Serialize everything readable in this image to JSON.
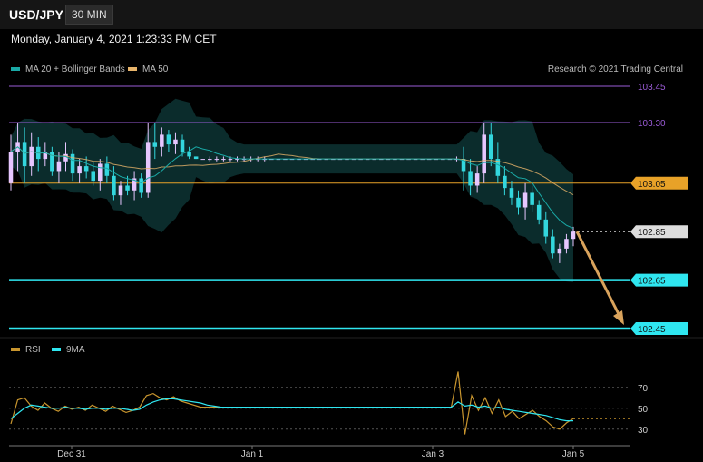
{
  "header": {
    "symbol": "USD/JPY",
    "interval": "30 MIN",
    "datetime": "Monday, January 4, 2021 1:23:33 PM CET"
  },
  "legend": {
    "ma20_label": "MA 20 + Bollinger Bands",
    "ma50_label": "MA 50",
    "ma20_color": "#1aa9a6",
    "ma50_color": "#e8b46a",
    "copyright": "Research © 2021 Trading Central"
  },
  "rsi_legend": {
    "rsi_label": "RSI",
    "ma_label": "9MA",
    "rsi_color": "#c8952e",
    "ma_color": "#2fe6f0"
  },
  "chart_data": [
    {
      "type": "line",
      "panel": "price",
      "x_ticks": [
        "Dec 31",
        "Jan 1",
        "Jan 3",
        "Jan 5"
      ],
      "levels": [
        {
          "label": "103.45",
          "value": 103.45,
          "color": "#9a5bd6",
          "style": "text"
        },
        {
          "label": "103.30",
          "value": 103.3,
          "color": "#9a5bd6",
          "style": "text"
        },
        {
          "label": "103.05",
          "value": 103.05,
          "color": "#e8a228",
          "style": "box"
        },
        {
          "label": "102.85",
          "value": 102.85,
          "color": "#dddddd",
          "style": "box"
        },
        {
          "label": "102.65",
          "value": 102.65,
          "color": "#2fe6f0",
          "style": "box"
        },
        {
          "label": "102.45",
          "value": 102.45,
          "color": "#2fe6f0",
          "style": "box"
        }
      ],
      "ylim": [
        102.43,
        103.52
      ],
      "candles": [
        [
          103.05,
          103.25,
          103.02,
          103.18
        ],
        [
          103.18,
          103.3,
          103.1,
          103.22
        ],
        [
          103.22,
          103.28,
          103.05,
          103.12
        ],
        [
          103.12,
          103.26,
          103.08,
          103.2
        ],
        [
          103.2,
          103.24,
          103.1,
          103.15
        ],
        [
          103.15,
          103.22,
          103.12,
          103.18
        ],
        [
          103.18,
          103.2,
          103.08,
          103.1
        ],
        [
          103.1,
          103.18,
          103.05,
          103.14
        ],
        [
          103.14,
          103.22,
          103.1,
          103.17
        ],
        [
          103.17,
          103.19,
          103.06,
          103.09
        ],
        [
          103.09,
          103.15,
          103.05,
          103.12
        ],
        [
          103.12,
          103.16,
          103.07,
          103.1
        ],
        [
          103.1,
          103.14,
          103.04,
          103.06
        ],
        [
          103.06,
          103.15,
          103.02,
          103.13
        ],
        [
          103.13,
          103.16,
          103.05,
          103.08
        ],
        [
          103.08,
          103.12,
          102.98,
          103.0
        ],
        [
          103.0,
          103.06,
          102.96,
          103.04
        ],
        [
          103.04,
          103.08,
          103.0,
          103.02
        ],
        [
          103.02,
          103.1,
          102.98,
          103.07
        ],
        [
          103.07,
          103.09,
          102.99,
          103.01
        ],
        [
          103.01,
          103.3,
          102.99,
          103.22
        ],
        [
          103.22,
          103.3,
          103.15,
          103.2
        ],
        [
          103.2,
          103.28,
          103.16,
          103.25
        ],
        [
          103.25,
          103.27,
          103.18,
          103.21
        ],
        [
          103.21,
          103.26,
          103.17,
          103.23
        ],
        [
          103.23,
          103.25,
          103.16,
          103.18
        ],
        [
          103.18,
          103.2,
          103.15,
          103.16
        ],
        [
          103.16,
          103.16,
          103.15,
          103.15
        ],
        [
          103.15,
          103.15,
          103.15,
          103.15
        ],
        [
          103.15,
          103.16,
          103.14,
          103.15
        ],
        [
          103.15,
          103.16,
          103.14,
          103.15
        ],
        [
          103.15,
          103.16,
          103.14,
          103.15
        ],
        [
          103.15,
          103.16,
          103.14,
          103.15
        ],
        [
          103.15,
          103.16,
          103.14,
          103.15
        ],
        [
          103.15,
          103.16,
          103.14,
          103.15
        ],
        [
          103.15,
          103.16,
          103.14,
          103.15
        ],
        [
          103.15,
          103.16,
          103.14,
          103.15
        ],
        [
          103.15,
          103.16,
          103.14,
          103.15
        ],
        [
          103.15,
          103.15,
          103.15,
          103.15
        ],
        [
          103.15,
          103.15,
          103.15,
          103.15
        ],
        [
          103.15,
          103.15,
          103.15,
          103.15
        ],
        [
          103.15,
          103.15,
          103.15,
          103.15
        ],
        [
          103.15,
          103.15,
          103.15,
          103.15
        ],
        [
          103.15,
          103.15,
          103.15,
          103.15
        ],
        [
          103.15,
          103.15,
          103.15,
          103.15
        ],
        [
          103.15,
          103.15,
          103.15,
          103.15
        ],
        [
          103.15,
          103.15,
          103.15,
          103.15
        ],
        [
          103.15,
          103.15,
          103.15,
          103.15
        ],
        [
          103.15,
          103.15,
          103.15,
          103.15
        ],
        [
          103.15,
          103.15,
          103.15,
          103.15
        ],
        [
          103.15,
          103.15,
          103.15,
          103.15
        ],
        [
          103.15,
          103.15,
          103.15,
          103.15
        ],
        [
          103.15,
          103.15,
          103.15,
          103.15
        ],
        [
          103.15,
          103.15,
          103.15,
          103.15
        ],
        [
          103.15,
          103.15,
          103.15,
          103.15
        ],
        [
          103.15,
          103.15,
          103.15,
          103.15
        ],
        [
          103.15,
          103.15,
          103.15,
          103.15
        ],
        [
          103.15,
          103.15,
          103.15,
          103.15
        ],
        [
          103.15,
          103.15,
          103.15,
          103.15
        ],
        [
          103.15,
          103.15,
          103.15,
          103.15
        ],
        [
          103.15,
          103.15,
          103.15,
          103.15
        ],
        [
          103.15,
          103.15,
          103.15,
          103.15
        ],
        [
          103.15,
          103.15,
          103.15,
          103.15
        ],
        [
          103.15,
          103.15,
          103.15,
          103.15
        ],
        [
          103.15,
          103.15,
          103.15,
          103.15
        ],
        [
          103.15,
          103.16,
          103.14,
          103.15
        ],
        [
          103.15,
          103.2,
          103.02,
          103.1
        ],
        [
          103.1,
          103.15,
          103.0,
          103.04
        ],
        [
          103.04,
          103.12,
          103.01,
          103.09
        ],
        [
          103.09,
          103.3,
          103.05,
          103.25
        ],
        [
          103.25,
          103.3,
          103.12,
          103.15
        ],
        [
          103.15,
          103.22,
          103.05,
          103.08
        ],
        [
          103.08,
          103.12,
          103.0,
          103.03
        ],
        [
          103.03,
          103.06,
          102.96,
          102.99
        ],
        [
          102.99,
          103.02,
          102.92,
          102.95
        ],
        [
          102.95,
          103.05,
          102.9,
          103.01
        ],
        [
          103.01,
          103.04,
          102.93,
          102.96
        ],
        [
          102.96,
          102.98,
          102.88,
          102.9
        ],
        [
          102.9,
          102.93,
          102.8,
          102.83
        ],
        [
          102.83,
          102.86,
          102.74,
          102.76
        ],
        [
          102.76,
          102.8,
          102.72,
          102.78
        ],
        [
          102.78,
          102.84,
          102.76,
          102.82
        ],
        [
          102.82,
          102.87,
          102.79,
          102.85
        ]
      ]
    },
    {
      "type": "line",
      "panel": "rsi",
      "y_ticks": [
        70,
        50,
        30
      ],
      "ylim": [
        15,
        95
      ],
      "series": [
        {
          "name": "RSI",
          "color": "#c8952e",
          "values": [
            35,
            58,
            60,
            52,
            48,
            55,
            50,
            47,
            52,
            49,
            51,
            48,
            53,
            50,
            47,
            52,
            49,
            46,
            48,
            51,
            62,
            64,
            60,
            58,
            61,
            57,
            55,
            53,
            51,
            51,
            51,
            51,
            51,
            51,
            51,
            51,
            51,
            51,
            51,
            51,
            51,
            51,
            51,
            51,
            51,
            51,
            51,
            51,
            51,
            51,
            51,
            51,
            51,
            51,
            51,
            51,
            51,
            51,
            51,
            51,
            51,
            51,
            51,
            51,
            51,
            51,
            85,
            25,
            62,
            48,
            60,
            45,
            58,
            42,
            47,
            40,
            44,
            48,
            42,
            38,
            32,
            30,
            36,
            40
          ]
        },
        {
          "name": "9MA",
          "color": "#2fe6f0",
          "values": [
            40,
            45,
            50,
            53,
            52,
            51,
            50,
            50,
            51,
            50,
            50,
            49,
            50,
            50,
            49,
            50,
            50,
            49,
            48,
            49,
            53,
            56,
            58,
            59,
            59,
            58,
            57,
            56,
            55,
            53,
            52,
            51,
            51,
            51,
            51,
            51,
            51,
            51,
            51,
            51,
            51,
            51,
            51,
            51,
            51,
            51,
            51,
            51,
            51,
            51,
            51,
            51,
            51,
            51,
            51,
            51,
            51,
            51,
            51,
            51,
            51,
            51,
            51,
            51,
            51,
            51,
            56,
            52,
            53,
            51,
            52,
            50,
            51,
            49,
            48,
            47,
            46,
            45,
            44,
            43,
            41,
            39,
            38,
            38
          ]
        }
      ]
    }
  ]
}
